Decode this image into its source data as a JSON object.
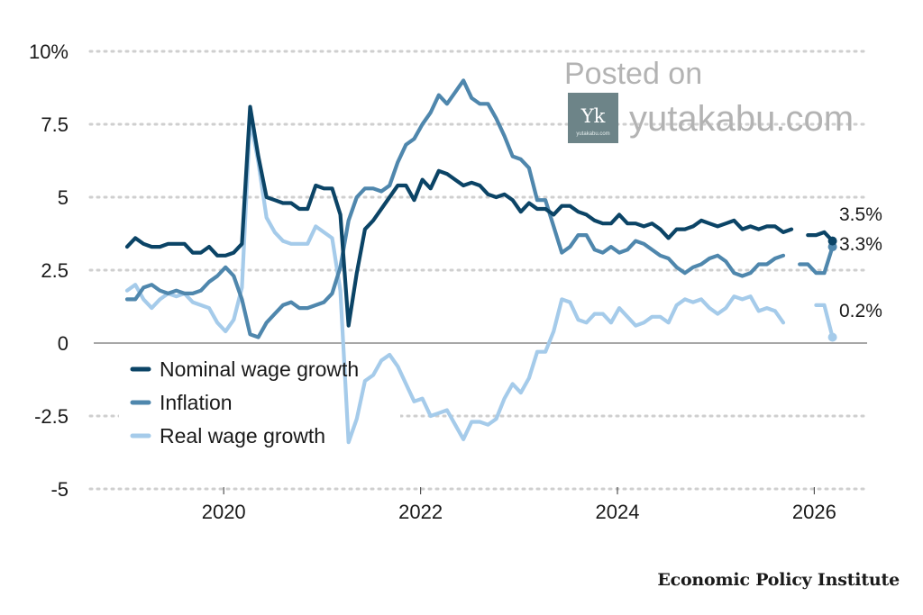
{
  "chart_data": {
    "type": "line",
    "title": "",
    "xlabel": "",
    "ylabel": "",
    "x_start": "2019-01",
    "x_ticks": [
      "2020",
      "2022",
      "2024",
      "2026"
    ],
    "y_ticks": [
      "10%",
      "7.5",
      "5",
      "2.5",
      "0",
      "-2.5",
      "-5"
    ],
    "ylim": [
      -5,
      10
    ],
    "grid": "horizontal dotted",
    "legend_position": "bottom-left",
    "series": [
      {
        "name": "Nominal wage growth",
        "color": "#0b4466",
        "end_label": "3.5%",
        "values": [
          3.3,
          3.6,
          3.4,
          3.3,
          3.3,
          3.4,
          3.4,
          3.4,
          3.1,
          3.1,
          3.3,
          3.0,
          3.0,
          3.1,
          3.4,
          8.1,
          6.4,
          5.0,
          4.9,
          4.8,
          4.8,
          4.6,
          4.6,
          5.4,
          5.3,
          5.3,
          4.4,
          0.6,
          2.4,
          3.9,
          4.2,
          4.6,
          5.0,
          5.4,
          5.4,
          4.9,
          5.6,
          5.3,
          5.9,
          5.8,
          5.6,
          5.4,
          5.5,
          5.4,
          5.1,
          5.0,
          5.1,
          4.9,
          4.5,
          4.8,
          4.6,
          4.6,
          4.4,
          4.7,
          4.7,
          4.5,
          4.4,
          4.2,
          4.1,
          4.1,
          4.4,
          4.1,
          4.1,
          4.0,
          4.1,
          3.9,
          3.6,
          3.9,
          3.9,
          4.0,
          4.2,
          4.1,
          4.0,
          4.1,
          4.2,
          3.9,
          4.0,
          3.9,
          4.0,
          4.0,
          3.8,
          3.9,
          3.9,
          3.7,
          3.7,
          3.8,
          3.5
        ],
        "gaps": [
          82
        ]
      },
      {
        "name": "Inflation",
        "color": "#4f87ad",
        "end_label": "3.3%",
        "values": [
          1.5,
          1.5,
          1.9,
          2.0,
          1.8,
          1.7,
          1.8,
          1.7,
          1.7,
          1.8,
          2.1,
          2.3,
          2.6,
          2.3,
          1.5,
          0.3,
          0.2,
          0.7,
          1.0,
          1.3,
          1.4,
          1.2,
          1.2,
          1.3,
          1.4,
          1.7,
          2.6,
          4.2,
          5.0,
          5.3,
          5.3,
          5.2,
          5.4,
          6.2,
          6.8,
          7.0,
          7.5,
          7.9,
          8.5,
          8.2,
          8.6,
          9.0,
          8.4,
          8.2,
          8.2,
          7.7,
          7.1,
          6.4,
          6.3,
          6.0,
          4.9,
          4.9,
          4.0,
          3.1,
          3.3,
          3.7,
          3.7,
          3.2,
          3.1,
          3.3,
          3.1,
          3.2,
          3.5,
          3.4,
          3.2,
          3.0,
          2.9,
          2.6,
          2.4,
          2.6,
          2.7,
          2.9,
          3.0,
          2.8,
          2.4,
          2.3,
          2.4,
          2.7,
          2.7,
          2.9,
          3.0,
          2.8,
          2.7,
          2.7,
          2.4,
          2.4,
          3.3
        ],
        "gaps": [
          81
        ]
      },
      {
        "name": "Real wage growth",
        "color": "#a5cbea",
        "end_label": "0.2%",
        "values": [
          1.8,
          2.0,
          1.5,
          1.2,
          1.5,
          1.7,
          1.6,
          1.7,
          1.4,
          1.3,
          1.2,
          0.7,
          0.4,
          0.8,
          1.9,
          7.7,
          6.2,
          4.3,
          3.8,
          3.5,
          3.4,
          3.4,
          3.4,
          4.0,
          3.8,
          3.6,
          1.8,
          -3.4,
          -2.6,
          -1.3,
          -1.1,
          -0.6,
          -0.4,
          -0.8,
          -1.4,
          -2.0,
          -1.9,
          -2.5,
          -2.4,
          -2.3,
          -2.8,
          -3.3,
          -2.7,
          -2.7,
          -2.8,
          -2.6,
          -1.9,
          -1.4,
          -1.7,
          -1.2,
          -0.3,
          -0.3,
          0.4,
          1.5,
          1.4,
          0.8,
          0.7,
          1.0,
          1.0,
          0.7,
          1.2,
          0.9,
          0.6,
          0.7,
          0.9,
          0.9,
          0.7,
          1.3,
          1.5,
          1.4,
          1.5,
          1.2,
          1.0,
          1.2,
          1.6,
          1.5,
          1.6,
          1.1,
          1.2,
          1.1,
          0.7,
          0.8,
          1.1,
          1.2,
          1.3,
          1.3,
          0.2
        ],
        "gaps": [
          81,
          83
        ]
      }
    ]
  },
  "watermark": {
    "line1": "Posted on",
    "site": "yutakabu.com",
    "logo_letters": "Yk",
    "logo_site": "yutakabu.com"
  },
  "source": "Economic Policy Institute"
}
